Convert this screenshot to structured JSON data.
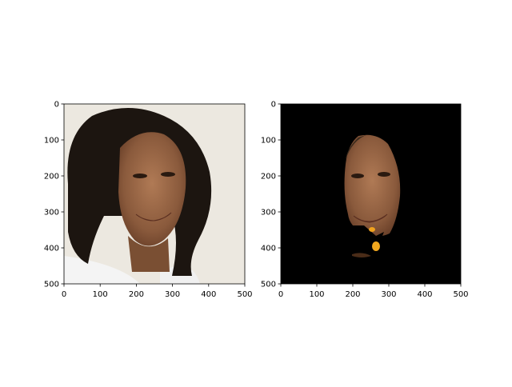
{
  "chart_data": [
    {
      "type": "image",
      "title": "",
      "xlabel": "",
      "ylabel": "",
      "xlim": [
        0,
        500
      ],
      "ylim": [
        500,
        0
      ],
      "xticks": [
        0,
        100,
        200,
        300,
        400,
        500
      ],
      "yticks": [
        0,
        100,
        200,
        300,
        400,
        500
      ],
      "xtick_labels": [
        "0",
        "100",
        "200",
        "300",
        "400",
        "500"
      ],
      "ytick_labels": [
        "0",
        "100",
        "200",
        "300",
        "400",
        "500"
      ],
      "image_content": "photo of smiling woman with curly dark hair, autumn leaves overlay",
      "background": "#ece8e0",
      "grid": false
    },
    {
      "type": "image",
      "title": "",
      "xlabel": "",
      "ylabel": "",
      "xlim": [
        0,
        500
      ],
      "ylim": [
        500,
        0
      ],
      "xticks": [
        0,
        100,
        200,
        300,
        400,
        500
      ],
      "yticks": [
        0,
        100,
        200,
        300,
        400,
        500
      ],
      "xtick_labels": [
        "0",
        "100",
        "200",
        "300",
        "400",
        "500"
      ],
      "ytick_labels": [
        "0",
        "100",
        "200",
        "300",
        "400",
        "500"
      ],
      "image_content": "segmented face region on black background",
      "background": "#000000",
      "grid": false
    }
  ]
}
